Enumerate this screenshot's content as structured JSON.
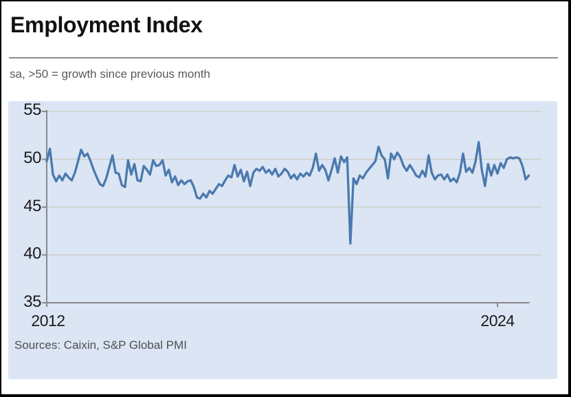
{
  "header": {
    "title": "Employment Index",
    "subtitle": "sa, >50 = growth since previous month"
  },
  "footer": {
    "sources": "Sources: Caixin, S&P Global PMI"
  },
  "chart_data": {
    "type": "line",
    "title": "Employment Index",
    "subtitle": "sa, >50 = growth since previous month",
    "sources": "Sources: Caixin, S&P Global PMI",
    "x_range": {
      "start": "2012-01",
      "end": "2024-11",
      "freq": "monthly"
    },
    "x_tick_labels": [
      "2012",
      "2024"
    ],
    "x_tick_month_index": [
      0,
      144
    ],
    "y_tick_labels": [
      "55",
      "50",
      "45",
      "40",
      "35"
    ],
    "y_ticks": [
      55,
      50,
      45,
      40,
      35
    ],
    "ylim": [
      35,
      56.5
    ],
    "grid": "horizontal",
    "legend": "none",
    "reference_level_note": ">50 = growth since previous month",
    "notable_points": {
      "covid_trough": {
        "month": "2020-02",
        "value": 41.2
      },
      "post_reopening_peak": {
        "month": "2023-07",
        "value": 51.8
      },
      "late_2020_peak": {
        "month": "2020-11",
        "value": 51.3
      },
      "series_end": {
        "month": "2024-11",
        "value": 48.3
      }
    },
    "colors": {
      "line": "#4a79ae",
      "panel_bg": "#dbe5f4",
      "grid": "#ccc9bd",
      "axis": "#898989",
      "tick_text": "#1b1b1b"
    },
    "series": [
      {
        "name": "Employment Index",
        "color": "#4a79ae",
        "values": [
          49.8,
          51.1,
          48.4,
          47.7,
          48.3,
          47.8,
          48.5,
          48.1,
          47.8,
          48.6,
          49.8,
          51.0,
          50.3,
          50.6,
          49.8,
          48.9,
          48.1,
          47.4,
          47.2,
          48.0,
          49.2,
          50.4,
          48.6,
          48.5,
          47.3,
          47.1,
          49.9,
          48.4,
          49.5,
          47.8,
          47.7,
          49.3,
          48.9,
          48.4,
          49.9,
          49.3,
          49.4,
          49.9,
          48.3,
          48.9,
          47.6,
          48.2,
          47.3,
          47.8,
          47.4,
          47.7,
          47.8,
          47.1,
          46.0,
          45.9,
          46.4,
          46.0,
          46.7,
          46.4,
          46.9,
          47.4,
          47.2,
          47.8,
          48.3,
          48.1,
          49.4,
          48.2,
          48.9,
          47.7,
          48.7,
          47.2,
          48.6,
          49.0,
          48.8,
          49.2,
          48.6,
          48.9,
          48.4,
          49.0,
          48.2,
          48.5,
          49.0,
          48.7,
          48.0,
          48.4,
          47.9,
          48.5,
          48.2,
          48.6,
          48.3,
          49.1,
          50.6,
          48.8,
          49.4,
          48.9,
          47.8,
          48.9,
          50.1,
          48.6,
          50.3,
          49.7,
          50.2,
          41.2,
          48.0,
          47.4,
          48.3,
          48.0,
          48.6,
          49.0,
          49.4,
          49.8,
          51.3,
          50.4,
          50.0,
          48.0,
          50.6,
          50.0,
          50.7,
          50.2,
          49.3,
          48.8,
          49.4,
          48.9,
          48.3,
          48.1,
          48.8,
          48.2,
          50.4,
          48.6,
          47.9,
          48.3,
          48.4,
          47.9,
          48.4,
          47.7,
          48.0,
          47.6,
          48.6,
          50.6,
          48.7,
          49.1,
          48.6,
          49.8,
          51.8,
          48.9,
          47.2,
          49.5,
          48.3,
          49.4,
          48.5,
          49.6,
          49.1,
          50.0,
          50.2,
          50.1,
          50.2,
          50.1,
          49.3,
          47.9,
          48.3
        ]
      }
    ]
  }
}
